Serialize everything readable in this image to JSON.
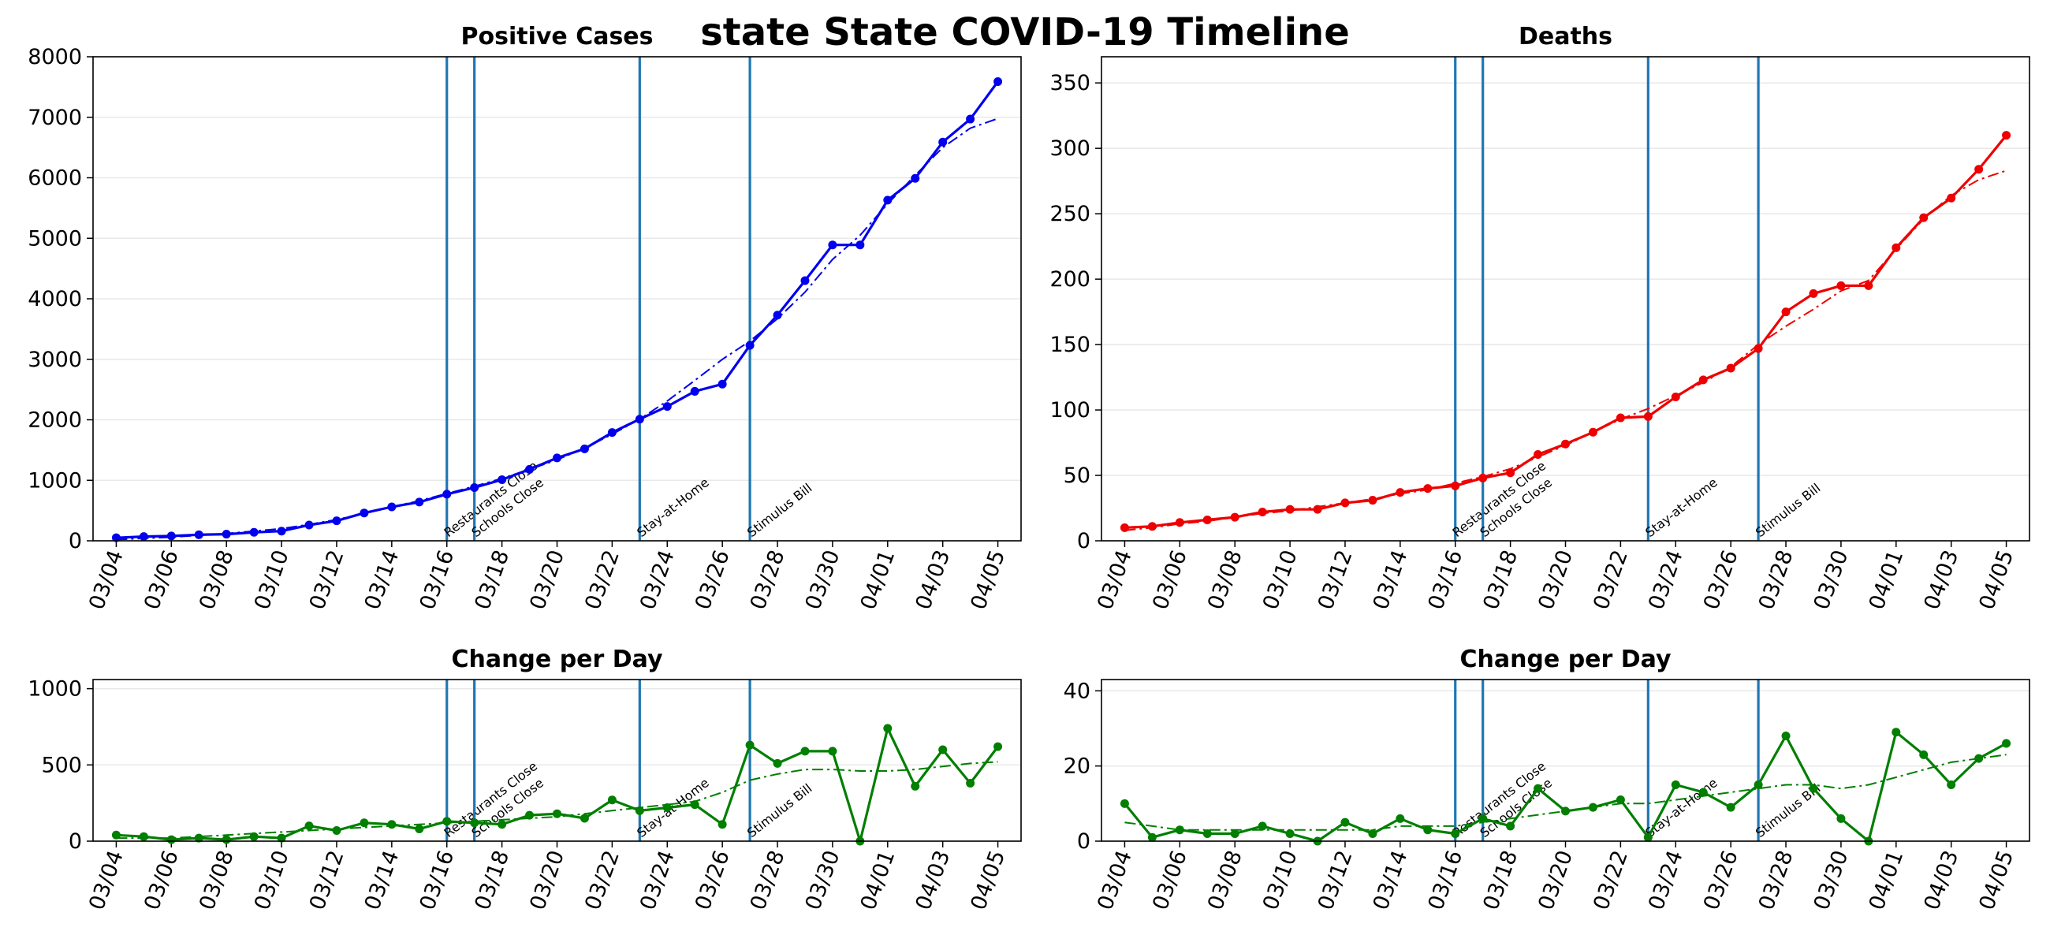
{
  "suptitle": "state State COVID-19 Timeline",
  "dates": [
    "03/04",
    "03/05",
    "03/06",
    "03/07",
    "03/08",
    "03/09",
    "03/10",
    "03/11",
    "03/12",
    "03/13",
    "03/14",
    "03/15",
    "03/16",
    "03/17",
    "03/18",
    "03/19",
    "03/20",
    "03/21",
    "03/22",
    "03/23",
    "03/24",
    "03/25",
    "03/26",
    "03/27",
    "03/28",
    "03/29",
    "03/30",
    "03/31",
    "04/01",
    "04/02",
    "04/03",
    "04/04",
    "04/05"
  ],
  "event_line_color": "#1f77b4",
  "events": [
    {
      "date": "03/16",
      "label": "Restaurants Close"
    },
    {
      "date": "03/17",
      "label": "Schools Close"
    },
    {
      "date": "03/23",
      "label": "Stay-at-Home"
    },
    {
      "date": "03/27",
      "label": "Stimulus Bill"
    }
  ],
  "chart_data": [
    {
      "id": "positive",
      "type": "line",
      "title": "Positive Cases",
      "color": "#0000ee",
      "ylim": [
        0,
        8000
      ],
      "yticks": [
        0,
        1000,
        2000,
        3000,
        4000,
        5000,
        6000,
        7000,
        8000
      ],
      "xticks": [
        "03/04",
        "03/06",
        "03/08",
        "03/10",
        "03/12",
        "03/14",
        "03/16",
        "03/18",
        "03/20",
        "03/22",
        "03/24",
        "03/26",
        "03/28",
        "03/30",
        "04/01",
        "04/03",
        "04/05"
      ],
      "grid": "y",
      "series": [
        {
          "style": "solid-markers",
          "values": [
            50,
            70,
            80,
            100,
            110,
            140,
            160,
            260,
            330,
            460,
            560,
            640,
            770,
            880,
            1010,
            1180,
            1370,
            1520,
            1790,
            2010,
            2220,
            2470,
            2590,
            3230,
            3730,
            4300,
            4890,
            4890,
            5630,
            5990,
            6590,
            6970,
            7590
          ]
        },
        {
          "style": "dash-dot",
          "values": [
            20,
            40,
            60,
            90,
            120,
            160,
            200,
            270,
            350,
            450,
            560,
            660,
            780,
            900,
            1030,
            1180,
            1340,
            1530,
            1760,
            2010,
            2310,
            2650,
            3000,
            3300,
            3670,
            4110,
            4650,
            5050,
            5570,
            6040,
            6500,
            6820,
            6980
          ]
        }
      ]
    },
    {
      "id": "deaths",
      "type": "line",
      "title": "Deaths",
      "color": "#ee0000",
      "ylim": [
        0,
        370
      ],
      "yticks": [
        0,
        50,
        100,
        150,
        200,
        250,
        300,
        350
      ],
      "xticks": [
        "03/04",
        "03/06",
        "03/08",
        "03/10",
        "03/12",
        "03/14",
        "03/16",
        "03/18",
        "03/20",
        "03/22",
        "03/24",
        "03/26",
        "03/28",
        "03/30",
        "04/01",
        "04/03",
        "04/05"
      ],
      "grid": "y",
      "series": [
        {
          "style": "solid-markers",
          "values": [
            10,
            11,
            14,
            16,
            18,
            22,
            24,
            24,
            29,
            31,
            37,
            40,
            42,
            48,
            52,
            66,
            74,
            83,
            94,
            95,
            110,
            123,
            132,
            147,
            175,
            189,
            195,
            195,
            224,
            247,
            262,
            284,
            310
          ]
        },
        {
          "style": "dash-dot",
          "values": [
            8,
            10,
            13,
            15,
            18,
            21,
            23,
            26,
            29,
            32,
            36,
            39,
            44,
            49,
            55,
            64,
            73,
            83,
            93,
            101,
            111,
            121,
            133,
            150,
            164,
            177,
            191,
            199,
            223,
            246,
            264,
            276,
            283
          ]
        }
      ]
    },
    {
      "id": "positive-change",
      "type": "line",
      "title": "Change per Day",
      "color": "#007f00",
      "ylim": [
        0,
        1060
      ],
      "yticks": [
        0,
        500,
        1000
      ],
      "xticks": [
        "03/04",
        "03/06",
        "03/08",
        "03/10",
        "03/12",
        "03/14",
        "03/16",
        "03/18",
        "03/20",
        "03/22",
        "03/24",
        "03/26",
        "03/28",
        "03/30",
        "04/01",
        "04/03",
        "04/05"
      ],
      "grid": "y",
      "series": [
        {
          "style": "solid-markers",
          "values": [
            40,
            30,
            10,
            20,
            10,
            30,
            20,
            100,
            70,
            120,
            110,
            80,
            130,
            120,
            110,
            170,
            180,
            150,
            270,
            200,
            220,
            240,
            110,
            630,
            510,
            590,
            590,
            0,
            740,
            360,
            600,
            380,
            620
          ]
        },
        {
          "style": "dash-dot",
          "values": [
            20,
            20,
            20,
            30,
            40,
            50,
            60,
            70,
            80,
            90,
            100,
            110,
            120,
            130,
            140,
            150,
            160,
            180,
            200,
            220,
            240,
            260,
            320,
            400,
            440,
            470,
            470,
            460,
            460,
            470,
            490,
            510,
            520
          ]
        }
      ]
    },
    {
      "id": "deaths-change",
      "type": "line",
      "title": "Change per Day",
      "color": "#007f00",
      "ylim": [
        0,
        43
      ],
      "yticks": [
        0,
        20,
        40
      ],
      "xticks": [
        "03/04",
        "03/06",
        "03/08",
        "03/10",
        "03/12",
        "03/14",
        "03/16",
        "03/18",
        "03/20",
        "03/22",
        "03/24",
        "03/26",
        "03/28",
        "03/30",
        "04/01",
        "04/03",
        "04/05"
      ],
      "grid": "y",
      "series": [
        {
          "style": "solid-markers",
          "values": [
            10,
            1,
            3,
            2,
            2,
            4,
            2,
            0,
            5,
            2,
            6,
            3,
            2,
            6,
            4,
            14,
            8,
            9,
            11,
            1,
            15,
            13,
            9,
            15,
            28,
            14,
            6,
            0,
            29,
            23,
            15,
            22,
            26
          ]
        },
        {
          "style": "dash-dot",
          "values": [
            5,
            4,
            3,
            3,
            3,
            3,
            3,
            3,
            3,
            3,
            4,
            4,
            4,
            5,
            6,
            7,
            8,
            9,
            10,
            10,
            11,
            12,
            13,
            14,
            15,
            15,
            14,
            15,
            17,
            19,
            21,
            22,
            23
          ]
        }
      ]
    }
  ]
}
